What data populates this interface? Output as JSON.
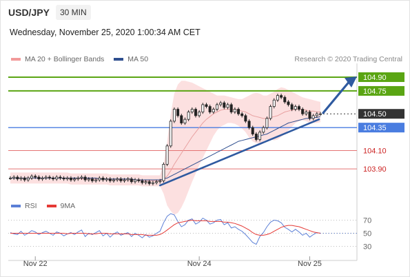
{
  "header": {
    "symbol": "USD/JPY",
    "interval": "30 MIN",
    "timestamp": "Wednesday, November 25, 2020 1:00:34 AM CET",
    "copyright": "Research © 2020 Trading Central"
  },
  "legend": {
    "items": [
      {
        "label": "MA 20 + Bollinger Bands",
        "color": "#f29a9a"
      },
      {
        "label": "MA 50",
        "color": "#2f4f8f"
      }
    ],
    "rsi_items": [
      {
        "label": "RSI",
        "color": "#5b7fd6"
      },
      {
        "label": "9MA",
        "color": "#e53935"
      }
    ]
  },
  "colors": {
    "resistance": "#5aa513",
    "support": "#e57373",
    "pivot": "#4a7de0",
    "last": "#333333",
    "arrow": "#2f5aa0",
    "bollinger": "#fbd5d5",
    "ma20": "#e8a0a0",
    "ma50": "#2f4f8f"
  },
  "chart_data": [
    {
      "type": "candlestick",
      "ylim": [
        103.6,
        105.05
      ],
      "x_ticks": [
        {
          "label": "Nov 22",
          "index": 7
        },
        {
          "label": "Nov 24",
          "index": 53
        },
        {
          "label": "Nov 25",
          "index": 84
        }
      ],
      "levels": [
        {
          "value": 104.9,
          "label": "104.90",
          "kind": "resistance"
        },
        {
          "value": 104.75,
          "label": "104.75",
          "kind": "resistance"
        },
        {
          "value": 104.5,
          "label": "104.50",
          "kind": "last"
        },
        {
          "value": 104.35,
          "label": "104.35",
          "kind": "pivot"
        },
        {
          "value": 104.1,
          "label": "104.10",
          "kind": "support"
        },
        {
          "value": 103.9,
          "label": "103.90",
          "kind": "support"
        }
      ],
      "close": [
        103.8,
        103.81,
        103.79,
        103.8,
        103.78,
        103.8,
        103.82,
        103.81,
        103.79,
        103.8,
        103.81,
        103.8,
        103.79,
        103.81,
        103.8,
        103.79,
        103.8,
        103.78,
        103.79,
        103.8,
        103.81,
        103.78,
        103.79,
        103.77,
        103.78,
        103.8,
        103.78,
        103.79,
        103.77,
        103.78,
        103.79,
        103.77,
        103.78,
        103.79,
        103.76,
        103.78,
        103.77,
        103.75,
        103.76,
        103.74,
        103.75,
        103.76,
        103.77,
        103.95,
        104.15,
        104.42,
        104.55,
        104.48,
        104.4,
        104.44,
        104.52,
        104.55,
        104.48,
        104.52,
        104.6,
        104.58,
        104.52,
        104.55,
        104.6,
        104.62,
        104.57,
        104.6,
        104.52,
        104.55,
        104.5,
        104.48,
        104.42,
        104.35,
        104.28,
        104.22,
        104.3,
        104.35,
        104.45,
        104.58,
        104.65,
        104.7,
        104.68,
        104.63,
        104.6,
        104.55,
        104.58,
        104.55,
        104.5,
        104.52,
        104.45,
        104.48,
        104.5,
        104.5
      ],
      "ma20": [
        103.8,
        103.8,
        103.8,
        103.8,
        103.8,
        103.8,
        103.8,
        103.8,
        103.8,
        103.8,
        103.8,
        103.8,
        103.8,
        103.8,
        103.8,
        103.8,
        103.8,
        103.79,
        103.79,
        103.79,
        103.79,
        103.79,
        103.79,
        103.79,
        103.79,
        103.79,
        103.79,
        103.79,
        103.78,
        103.78,
        103.78,
        103.78,
        103.78,
        103.78,
        103.78,
        103.78,
        103.78,
        103.77,
        103.77,
        103.77,
        103.77,
        103.77,
        103.77,
        103.79,
        103.82,
        103.88,
        103.95,
        104.01,
        104.07,
        104.13,
        104.19,
        104.25,
        104.3,
        104.35,
        104.4,
        104.44,
        104.47,
        104.5,
        104.52,
        104.54,
        104.55,
        104.55,
        104.55,
        104.55,
        104.54,
        104.53,
        104.52,
        104.5,
        104.48,
        104.47,
        104.46,
        104.45,
        104.45,
        104.46,
        104.47,
        104.48,
        104.5,
        104.52,
        104.53,
        104.54,
        104.55,
        104.55,
        104.55,
        104.54,
        104.53,
        104.53,
        104.52,
        104.52
      ],
      "ma50": [
        103.8,
        103.8,
        103.8,
        103.8,
        103.8,
        103.8,
        103.8,
        103.8,
        103.8,
        103.8,
        103.8,
        103.8,
        103.8,
        103.8,
        103.8,
        103.8,
        103.8,
        103.8,
        103.8,
        103.8,
        103.8,
        103.8,
        103.8,
        103.8,
        103.8,
        103.79,
        103.79,
        103.79,
        103.79,
        103.79,
        103.79,
        103.79,
        103.79,
        103.79,
        103.79,
        103.78,
        103.78,
        103.78,
        103.78,
        103.78,
        103.78,
        103.78,
        103.78,
        103.79,
        103.8,
        103.82,
        103.84,
        103.86,
        103.88,
        103.9,
        103.92,
        103.94,
        103.96,
        103.98,
        104.0,
        104.02,
        104.04,
        104.06,
        104.08,
        104.1,
        104.12,
        104.14,
        104.16,
        104.18,
        104.2,
        104.21,
        104.22,
        104.23,
        104.24,
        104.25,
        104.26,
        104.27,
        104.28,
        104.3,
        104.32,
        104.34,
        104.36,
        104.38,
        104.4,
        104.41,
        104.42,
        104.43,
        104.44,
        104.45,
        104.45,
        104.46,
        104.46,
        104.47
      ],
      "bb_upper": [
        103.86,
        103.86,
        103.86,
        103.86,
        103.86,
        103.86,
        103.86,
        103.86,
        103.86,
        103.86,
        103.86,
        103.86,
        103.86,
        103.86,
        103.86,
        103.86,
        103.86,
        103.85,
        103.85,
        103.85,
        103.85,
        103.85,
        103.85,
        103.85,
        103.85,
        103.85,
        103.85,
        103.85,
        103.84,
        103.84,
        103.84,
        103.84,
        103.84,
        103.84,
        103.84,
        103.84,
        103.84,
        103.83,
        103.83,
        103.83,
        103.83,
        103.83,
        103.83,
        103.95,
        104.2,
        104.5,
        104.72,
        104.82,
        104.86,
        104.86,
        104.85,
        104.84,
        104.82,
        104.8,
        104.78,
        104.76,
        104.74,
        104.72,
        104.7,
        104.7,
        104.7,
        104.69,
        104.68,
        104.67,
        104.66,
        104.66,
        104.68,
        104.7,
        104.72,
        104.73,
        104.72,
        104.7,
        104.7,
        104.72,
        104.74,
        104.77,
        104.79,
        104.78,
        104.76,
        104.74,
        104.72,
        104.7,
        104.68,
        104.67,
        104.66,
        104.65,
        104.64,
        104.63
      ],
      "bb_lower": [
        103.74,
        103.74,
        103.74,
        103.74,
        103.74,
        103.74,
        103.74,
        103.74,
        103.74,
        103.74,
        103.74,
        103.74,
        103.74,
        103.74,
        103.74,
        103.74,
        103.74,
        103.73,
        103.73,
        103.73,
        103.73,
        103.73,
        103.73,
        103.73,
        103.73,
        103.73,
        103.73,
        103.73,
        103.72,
        103.72,
        103.72,
        103.72,
        103.72,
        103.72,
        103.72,
        103.72,
        103.72,
        103.71,
        103.71,
        103.71,
        103.71,
        103.71,
        103.71,
        103.63,
        103.5,
        103.44,
        103.4,
        103.42,
        103.48,
        103.56,
        103.66,
        103.76,
        103.85,
        103.94,
        104.02,
        104.1,
        104.18,
        104.26,
        104.32,
        104.36,
        104.38,
        104.4,
        104.4,
        104.39,
        104.37,
        104.34,
        104.3,
        104.24,
        104.2,
        104.18,
        104.18,
        104.2,
        104.22,
        104.22,
        104.21,
        104.22,
        104.25,
        104.28,
        104.32,
        104.36,
        104.4,
        104.42,
        104.43,
        104.42,
        104.4,
        104.4,
        104.4,
        104.41
      ]
    },
    {
      "type": "line",
      "name": "RSI",
      "ylim": [
        20,
        80
      ],
      "y_ticks": [
        70,
        50,
        30
      ],
      "rsi": [
        51,
        49,
        48,
        53,
        47,
        50,
        54,
        52,
        48,
        51,
        53,
        50,
        47,
        52,
        50,
        46,
        49,
        51,
        48,
        52,
        55,
        45,
        50,
        48,
        51,
        54,
        46,
        50,
        44,
        49,
        52,
        47,
        49,
        51,
        45,
        50,
        47,
        43,
        48,
        44,
        46,
        50,
        53,
        66,
        76,
        80,
        78,
        68,
        60,
        63,
        70,
        72,
        64,
        67,
        73,
        70,
        64,
        66,
        70,
        71,
        63,
        66,
        58,
        60,
        56,
        53,
        48,
        42,
        36,
        33,
        45,
        51,
        60,
        67,
        70,
        69,
        66,
        59,
        56,
        52,
        56,
        52,
        47,
        50,
        44,
        48,
        51,
        50
      ],
      "ma9": [
        50,
        50,
        50,
        50,
        50,
        50,
        50,
        50,
        50,
        50,
        50,
        50,
        50,
        50,
        50,
        50,
        49,
        50,
        50,
        50,
        50,
        50,
        49,
        49,
        49,
        50,
        50,
        50,
        49,
        49,
        49,
        49,
        49,
        49,
        48,
        48,
        48,
        48,
        47,
        47,
        47,
        47,
        48,
        51,
        55,
        59,
        63,
        66,
        67,
        68,
        69,
        70,
        69,
        69,
        69,
        69,
        68,
        68,
        68,
        68,
        67,
        67,
        66,
        65,
        63,
        61,
        58,
        55,
        51,
        48,
        47,
        47,
        48,
        50,
        53,
        56,
        59,
        61,
        62,
        62,
        61,
        60,
        58,
        56,
        54,
        52,
        51,
        50
      ]
    }
  ]
}
